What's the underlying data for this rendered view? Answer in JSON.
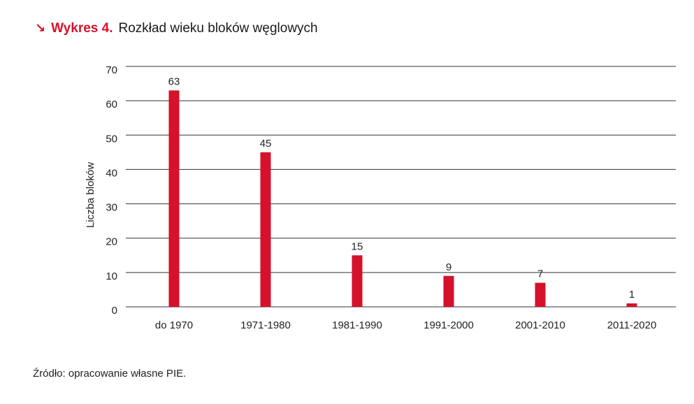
{
  "header": {
    "arrow_glyph": "↘",
    "label": "Wykres 4.",
    "title": "Rozkład wieku bloków węglowych"
  },
  "footer": {
    "source": "Źródło: opracowanie własne PIE."
  },
  "colors": {
    "bar": "#d6112b",
    "grid": "#333333",
    "accent": "#d6112b"
  },
  "chart_data": {
    "type": "bar",
    "title": "Rozkład wieku bloków węglowych",
    "xlabel": "",
    "ylabel": "Liczba bloków",
    "categories": [
      "do 1970",
      "1971-1980",
      "1981-1990",
      "1991-2000",
      "2001-2010",
      "2011-2020"
    ],
    "values": [
      63,
      45,
      15,
      9,
      7,
      1
    ],
    "data_labels": [
      "63",
      "45",
      "15",
      "9",
      "7",
      "1"
    ],
    "ylim": [
      0,
      70
    ],
    "yticks": [
      0,
      10,
      20,
      30,
      40,
      50,
      60,
      70
    ],
    "grid": true,
    "legend": "none"
  }
}
